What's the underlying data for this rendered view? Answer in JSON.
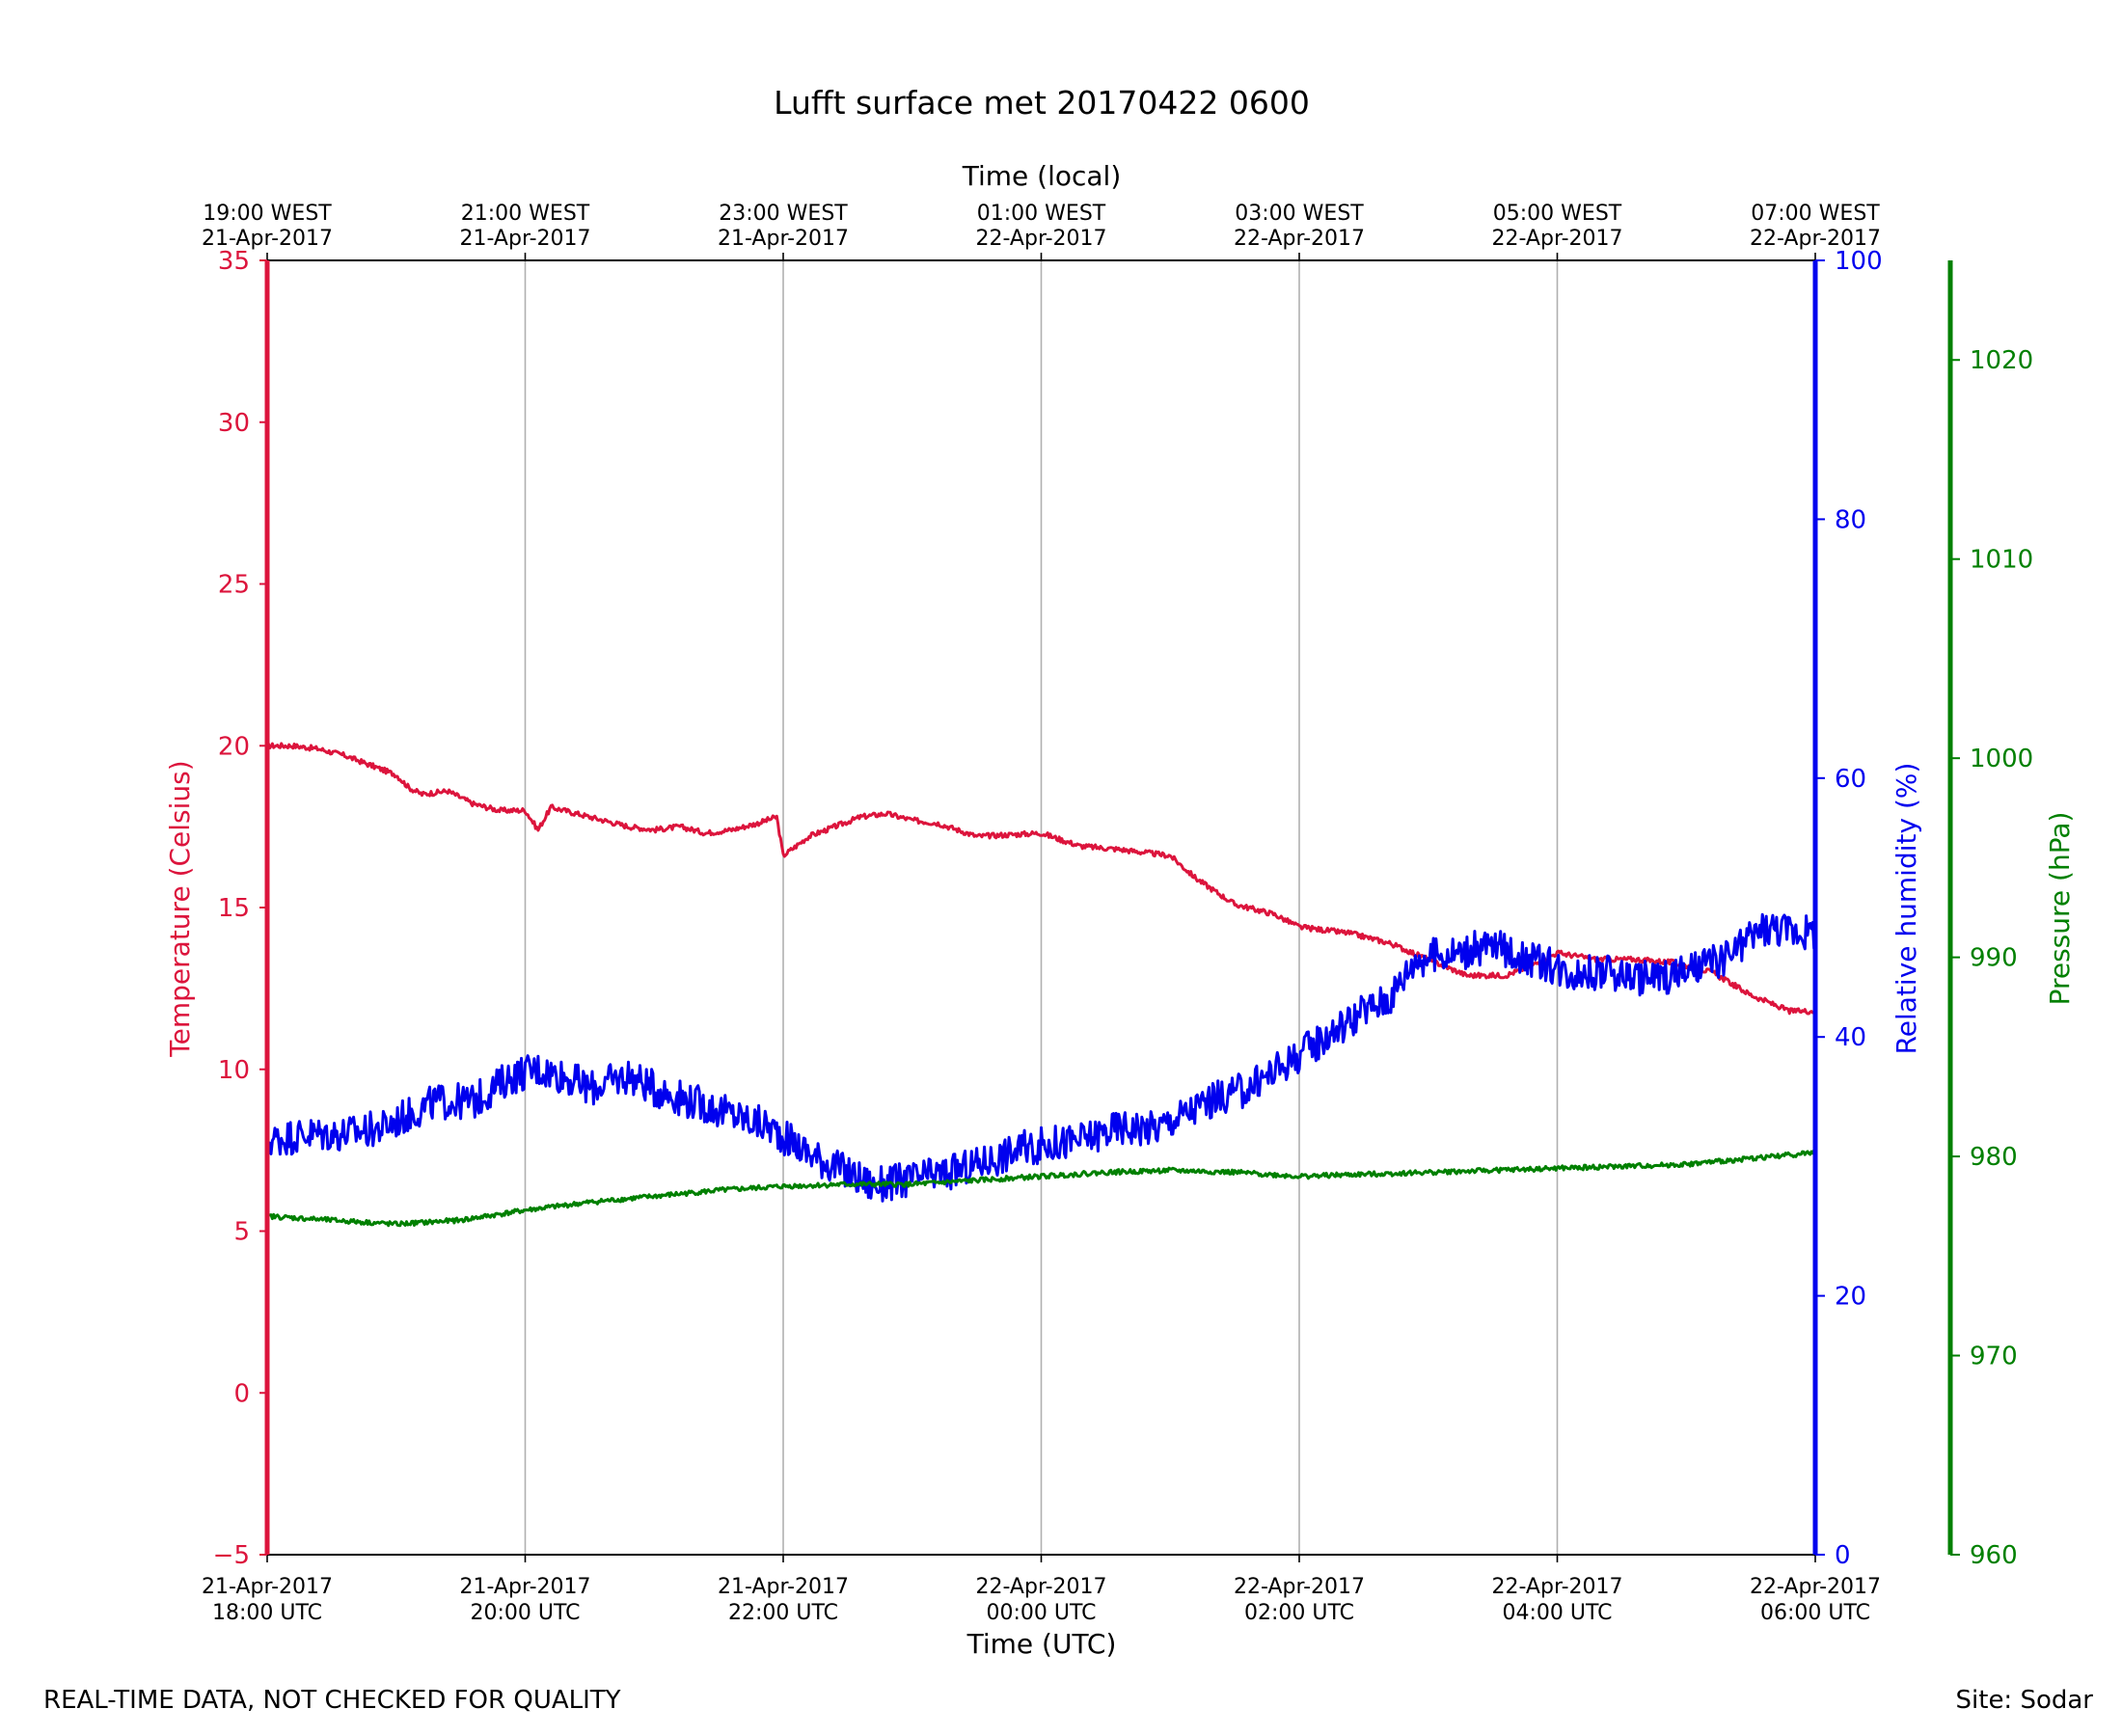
{
  "chart_data": {
    "type": "line",
    "title": "Lufft surface met 20170422 0600",
    "xlabel": "Time (UTC)",
    "x2label": "Time (local)",
    "x_ticks_bottom": [
      [
        "21-Apr-2017",
        "18:00 UTC"
      ],
      [
        "21-Apr-2017",
        "20:00 UTC"
      ],
      [
        "21-Apr-2017",
        "22:00 UTC"
      ],
      [
        "22-Apr-2017",
        "00:00 UTC"
      ],
      [
        "22-Apr-2017",
        "02:00 UTC"
      ],
      [
        "22-Apr-2017",
        "04:00 UTC"
      ],
      [
        "22-Apr-2017",
        "06:00 UTC"
      ]
    ],
    "x_ticks_top": [
      [
        "19:00 WEST",
        "21-Apr-2017"
      ],
      [
        "21:00 WEST",
        "21-Apr-2017"
      ],
      [
        "23:00 WEST",
        "21-Apr-2017"
      ],
      [
        "01:00 WEST",
        "22-Apr-2017"
      ],
      [
        "03:00 WEST",
        "22-Apr-2017"
      ],
      [
        "05:00 WEST",
        "22-Apr-2017"
      ],
      [
        "07:00 WEST",
        "22-Apr-2017"
      ]
    ],
    "xlim_hours": [
      0,
      12
    ],
    "grid": "vertical",
    "axes": {
      "temperature": {
        "label": "Temperature (Celsius)",
        "ylim": [
          -5,
          35
        ],
        "ticks": [
          -5,
          0,
          5,
          10,
          15,
          20,
          25,
          30,
          35
        ],
        "color": "#dc143c"
      },
      "humidity": {
        "label": "Relative humidity (%)",
        "ylim": [
          0,
          100
        ],
        "ticks": [
          0,
          20,
          40,
          60,
          80,
          100
        ],
        "color": "#0000ee"
      },
      "pressure": {
        "label": "Pressure (hPa)",
        "ylim": [
          960,
          1025
        ],
        "ticks": [
          960,
          970,
          980,
          990,
          1000,
          1010,
          1020
        ],
        "color": "#008000"
      }
    },
    "series": [
      {
        "name": "Temperature",
        "axis": "temperature",
        "x_hours": [
          0,
          0.2,
          0.4,
          0.6,
          0.8,
          1.0,
          1.1,
          1.2,
          1.4,
          1.6,
          1.8,
          2.0,
          2.1,
          2.2,
          2.4,
          2.6,
          2.8,
          3.0,
          3.2,
          3.4,
          3.6,
          3.8,
          3.95,
          4.0,
          4.2,
          4.4,
          4.6,
          4.8,
          5.0,
          5.2,
          5.5,
          6.0,
          6.3,
          6.6,
          7.0,
          7.2,
          7.5,
          7.8,
          8.0,
          8.4,
          8.7,
          9.0,
          9.3,
          9.6,
          9.8,
          10.0,
          10.3,
          10.6,
          10.9,
          11.2,
          11.5,
          11.8,
          12.0
        ],
        "values": [
          20.0,
          20.0,
          19.9,
          19.7,
          19.4,
          19.1,
          18.7,
          18.5,
          18.6,
          18.2,
          18.0,
          18.0,
          17.4,
          18.1,
          17.9,
          17.7,
          17.5,
          17.4,
          17.5,
          17.3,
          17.4,
          17.6,
          17.8,
          16.6,
          17.2,
          17.5,
          17.8,
          17.9,
          17.7,
          17.6,
          17.2,
          17.3,
          16.9,
          16.8,
          16.6,
          15.9,
          15.1,
          14.8,
          14.4,
          14.2,
          13.9,
          13.4,
          12.9,
          12.9,
          13.2,
          13.6,
          13.4,
          13.4,
          13.3,
          13.0,
          12.3,
          11.8,
          11.8
        ]
      },
      {
        "name": "Relative humidity",
        "axis": "humidity",
        "x_hours": [
          0,
          0.3,
          0.6,
          0.9,
          1.1,
          1.3,
          1.6,
          1.9,
          2.1,
          2.3,
          2.5,
          2.8,
          3.0,
          3.3,
          3.6,
          3.9,
          4.2,
          4.5,
          4.7,
          5.0,
          5.3,
          5.6,
          5.9,
          6.3,
          6.6,
          6.9,
          7.1,
          7.3,
          7.6,
          7.9,
          8.2,
          8.5,
          8.7,
          8.9,
          9.2,
          9.5,
          9.8,
          10.1,
          10.4,
          10.7,
          11.0,
          11.3,
          11.6,
          12.0
        ],
        "values": [
          32,
          32.5,
          32.5,
          33,
          34,
          35,
          35,
          37,
          37.5,
          37,
          36,
          37,
          36,
          35,
          34,
          33,
          31,
          29.5,
          28.5,
          29,
          29.5,
          30.5,
          31.5,
          32,
          33,
          33,
          34,
          35,
          36,
          38,
          40,
          42,
          43,
          46,
          46.5,
          47,
          46,
          45,
          45,
          44.5,
          45,
          46,
          48.5,
          48
        ]
      },
      {
        "name": "Pressure",
        "axis": "pressure",
        "x_hours": [
          0,
          0.5,
          1.0,
          1.5,
          2.0,
          2.5,
          3.0,
          3.5,
          4.0,
          4.5,
          5.0,
          5.5,
          6.0,
          6.5,
          7.0,
          7.5,
          8.0,
          8.5,
          9.0,
          9.5,
          10.0,
          10.5,
          11.0,
          11.5,
          12.0
        ],
        "values": [
          977.0,
          976.8,
          976.6,
          976.8,
          977.3,
          977.7,
          978.0,
          978.3,
          978.5,
          978.6,
          978.6,
          978.8,
          979.0,
          979.2,
          979.3,
          979.2,
          979.0,
          979.1,
          979.2,
          979.3,
          979.4,
          979.5,
          979.6,
          979.9,
          980.2
        ]
      }
    ]
  },
  "footer": {
    "left": "REAL-TIME DATA, NOT CHECKED FOR QUALITY",
    "right": "Site: Sodar"
  }
}
